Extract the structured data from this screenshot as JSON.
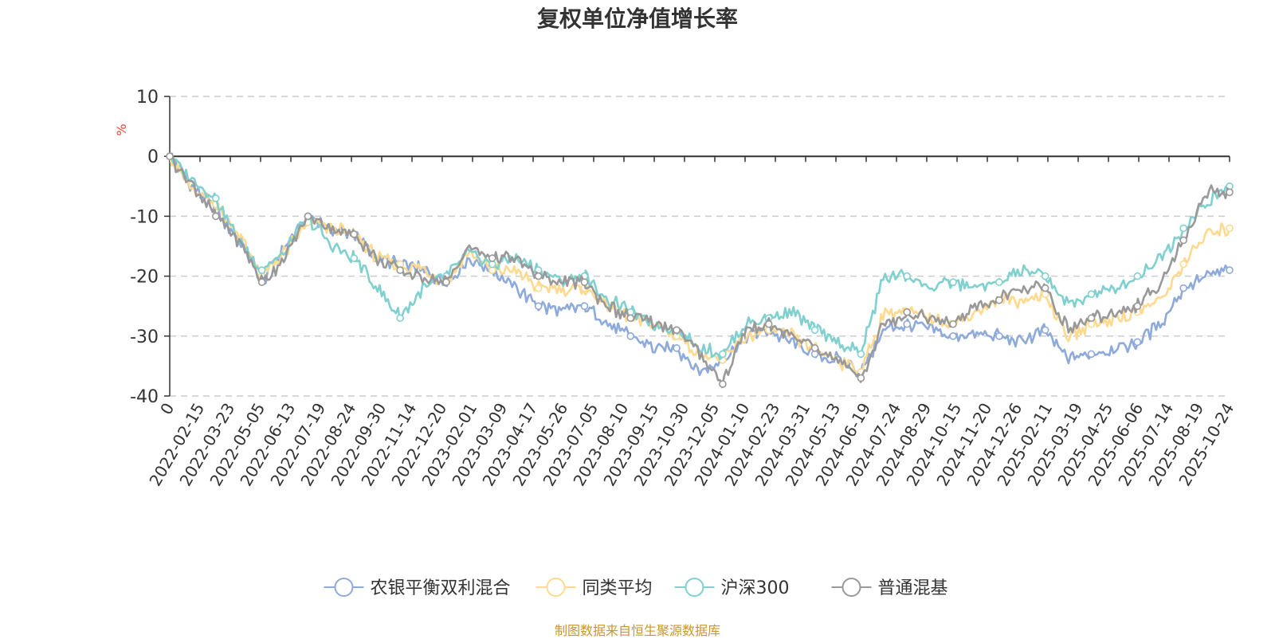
{
  "title": "复权单位净值增长率",
  "source": "制图数据来自恒生聚源数据库",
  "colors": {
    "fund": "#8eaadb",
    "peer": "#ffd98e",
    "hs300": "#80d0d0",
    "mixed": "#999999",
    "grid": "#cccccc",
    "unit": "#e8463c",
    "source": "#c8962f"
  },
  "chart_data": {
    "type": "line",
    "ylabel": "%",
    "ylim": [
      -40,
      10
    ],
    "yticks": [
      "10",
      "0",
      "-10",
      "-20",
      "-30",
      "-40"
    ],
    "grid": true,
    "legend_position": "bottom",
    "x_tick_labels": [
      "0",
      "2022-02-15",
      "2022-03-23",
      "2022-05-05",
      "2022-06-13",
      "2022-07-19",
      "2022-08-24",
      "2022-09-30",
      "2022-11-14",
      "2022-12-20",
      "2023-02-01",
      "2023-03-09",
      "2023-04-17",
      "2023-05-26",
      "2023-07-05",
      "2023-08-10",
      "2023-09-15",
      "2023-10-30",
      "2023-12-05",
      "2024-01-10",
      "2024-02-23",
      "2024-03-31",
      "2024-05-13",
      "2024-06-19",
      "2024-07-24",
      "2024-08-29",
      "2024-10-15",
      "2024-11-20",
      "2024-12-26",
      "2025-02-11",
      "2025-03-19",
      "2025-04-25",
      "2025-06-06",
      "2025-07-14",
      "2025-08-19",
      "2025-10-24"
    ],
    "series": [
      {
        "name": "农银平衡双利混合",
        "color_key": "fund",
        "values": [
          0,
          -5,
          -9,
          -14,
          -21,
          -15,
          -10,
          -12,
          -13,
          -17,
          -18,
          -19,
          -21,
          -17,
          -19,
          -22,
          -25,
          -26,
          -25,
          -28,
          -30,
          -32,
          -32,
          -36,
          -34,
          -30,
          -29,
          -31,
          -33,
          -34,
          -36,
          -29,
          -28,
          -29,
          -30,
          -30,
          -30,
          -31,
          -29,
          -34,
          -33,
          -32,
          -31,
          -28,
          -22,
          -20,
          -19
        ]
      },
      {
        "name": "同类平均",
        "color_key": "peer",
        "values": [
          0,
          -6,
          -8,
          -13,
          -20,
          -16,
          -11,
          -12,
          -13,
          -17,
          -18,
          -19,
          -21,
          -16,
          -19,
          -19,
          -22,
          -22,
          -22,
          -25,
          -27,
          -28,
          -30,
          -33,
          -34,
          -30,
          -29,
          -30,
          -32,
          -34,
          -36,
          -26,
          -26,
          -27,
          -28,
          -26,
          -24,
          -24,
          -23,
          -30,
          -28,
          -27,
          -26,
          -24,
          -18,
          -13,
          -12
        ]
      },
      {
        "name": "沪深300",
        "color_key": "hs300",
        "values": [
          0,
          -4,
          -7,
          -14,
          -19,
          -16,
          -10,
          -15,
          -17,
          -22,
          -27,
          -22,
          -20,
          -16,
          -18,
          -17,
          -19,
          -21,
          -20,
          -24,
          -26,
          -28,
          -29,
          -32,
          -33,
          -28,
          -27,
          -26,
          -29,
          -31,
          -33,
          -20,
          -20,
          -22,
          -21,
          -22,
          -21,
          -19,
          -20,
          -25,
          -23,
          -22,
          -20,
          -17,
          -12,
          -8,
          -5
        ]
      },
      {
        "name": "普通混基",
        "color_key": "mixed",
        "values": [
          0,
          -5,
          -10,
          -14,
          -21,
          -17,
          -10,
          -12,
          -13,
          -17,
          -19,
          -20,
          -21,
          -15,
          -17,
          -17,
          -20,
          -21,
          -21,
          -25,
          -27,
          -28,
          -29,
          -33,
          -38,
          -29,
          -28,
          -30,
          -32,
          -34,
          -37,
          -28,
          -26,
          -27,
          -28,
          -25,
          -24,
          -22,
          -22,
          -29,
          -27,
          -26,
          -25,
          -21,
          -14,
          -6,
          -6
        ]
      }
    ]
  }
}
